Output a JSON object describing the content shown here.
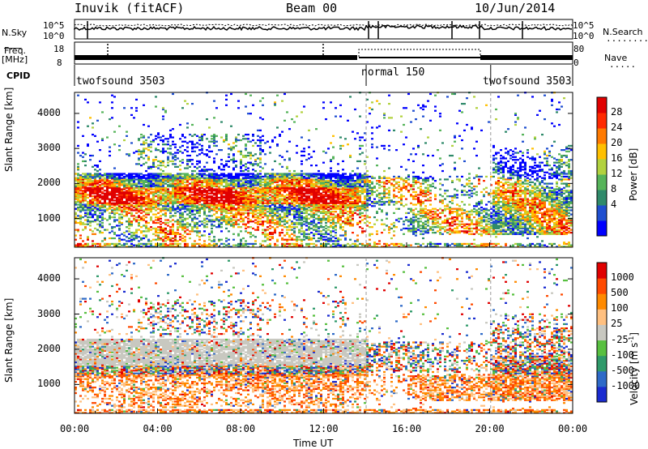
{
  "header": {
    "title": "Inuvik (fitACF)",
    "beam": "Beam 00",
    "date": "10/Jun/2014"
  },
  "top_panels": {
    "nsky_label": "N.Sky",
    "nsearch_label": "N.Search",
    "freq_label": "Freq.",
    "freq_unit": "[MHz]",
    "nave_label": "Nave",
    "cpid_label": "CPID",
    "noise_ticks_left": [
      "10^5",
      "10^0"
    ],
    "noise_ticks_right": [
      "10^5",
      "10^0"
    ],
    "freq_ticks": [
      "18",
      "8"
    ],
    "nave_ticks": [
      "80",
      "0"
    ],
    "cpid_segments": [
      {
        "label": "twofsound 3503",
        "start_h": 0,
        "end_h": 14.05
      },
      {
        "label": "normal 150",
        "start_h": 14.05,
        "end_h": 20.05
      },
      {
        "label": "twofsound 3503",
        "start_h": 20.05,
        "end_h": 24
      }
    ]
  },
  "chart_data": [
    {
      "type": "heatmap",
      "name": "power",
      "ylabel": "Slant Range [km]",
      "xlabel": "Time UT",
      "x_range_h": [
        0,
        24
      ],
      "ylim_km": [
        180,
        4600
      ],
      "yticks": [
        1000,
        2000,
        3000,
        4000
      ],
      "xtick_labels": [
        "00:00",
        "04:00",
        "08:00",
        "12:00",
        "16:00",
        "20:00",
        "00:00"
      ],
      "colorbar": {
        "label": "Power [dB]",
        "ticks": [
          "28",
          "24",
          "20",
          "16",
          "12",
          "8",
          "4"
        ],
        "colors": [
          "#0000ff",
          "#1f4fd0",
          "#2f8a6a",
          "#56b45a",
          "#b2d23f",
          "#ffc000",
          "#ff7a00",
          "#ff2a00",
          "#e00000"
        ]
      }
    },
    {
      "type": "heatmap",
      "name": "velocity",
      "ylabel": "Slant Range [km]",
      "xlabel": "Time UT",
      "x_range_h": [
        0,
        24
      ],
      "ylim_km": [
        180,
        4600
      ],
      "yticks": [
        1000,
        2000,
        3000,
        4000
      ],
      "xtick_labels": [
        "00:00",
        "04:00",
        "08:00",
        "12:00",
        "16:00",
        "20:00",
        "00:00"
      ],
      "colorbar": {
        "label": "Velocity [m s",
        "label_sup": "-1",
        "label_end": "]",
        "ticks": [
          "1000",
          "500",
          "100",
          "25",
          "-25",
          "-100",
          "-500",
          "-1000"
        ],
        "colors": [
          "#1a2bd0",
          "#2e6ac8",
          "#2f9a6a",
          "#58c040",
          "#c8c8c0",
          "#ffc080",
          "#ff8a00",
          "#ff4a00",
          "#e00000"
        ]
      }
    }
  ],
  "axis": {
    "xlabel": "Time UT",
    "xtick_labels": [
      "00:00",
      "04:00",
      "08:00",
      "12:00",
      "16:00",
      "20:00",
      "00:00"
    ]
  }
}
